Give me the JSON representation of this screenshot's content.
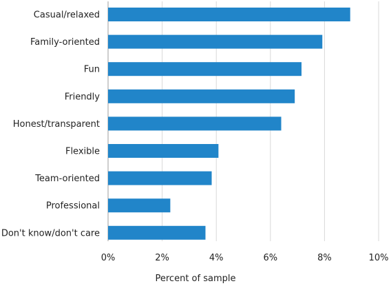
{
  "chart_data": {
    "type": "bar",
    "orientation": "horizontal",
    "categories": [
      "Casual/relaxed",
      "Family-oriented",
      "Fun",
      "Friendly",
      "Honest/transparent",
      "Flexible",
      "Team-oriented",
      "Professional",
      "Don't know/don't care"
    ],
    "values": [
      8.95,
      7.92,
      7.15,
      6.9,
      6.4,
      4.08,
      3.83,
      2.3,
      3.6
    ],
    "xlabel": "Percent of sample",
    "ylabel": "",
    "xlim": [
      0,
      10
    ],
    "x_ticks": [
      "0%",
      "2%",
      "4%",
      "6%",
      "8%",
      "10%"
    ],
    "x_tick_values": [
      0,
      2,
      4,
      6,
      8,
      10
    ],
    "grid": "vertical",
    "legend": "none",
    "bar_color": "#2185c9",
    "grid_color": "#d9d9d9"
  }
}
